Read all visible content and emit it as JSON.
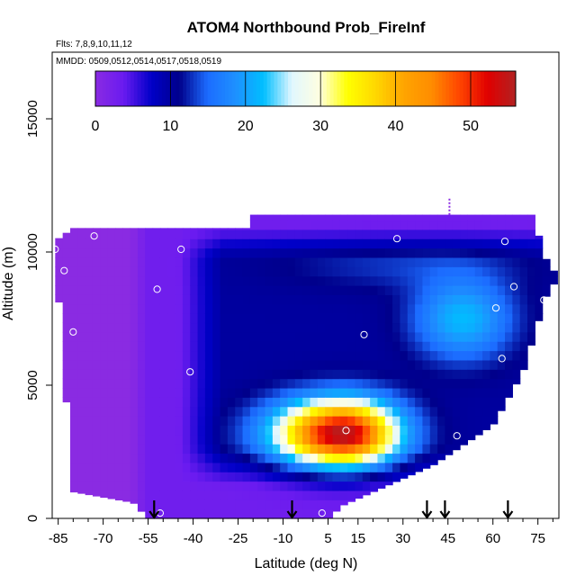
{
  "chart_data": {
    "type": "heatmap",
    "title": "ATOM4 Northbound Prob_FireInf",
    "flights_label": "Flts: 7,8,9,10,11,12",
    "dates_label": "MMDD: 0509,0512,0514,0517,0518,0519",
    "xlabel": "Latitude (deg N)",
    "ylabel": "Altitude (m)",
    "xlim": [
      -87,
      82
    ],
    "ylim": [
      0,
      17500
    ],
    "x_ticks": [
      -85,
      -70,
      -55,
      -40,
      -25,
      -10,
      5,
      15,
      30,
      45,
      60,
      75
    ],
    "x_tick_labels": [
      "-85",
      "-70",
      "-55",
      "-40",
      "-25",
      "-10",
      "5",
      "15",
      "30",
      "45",
      "60",
      "75"
    ],
    "y_ticks": [
      0,
      5000,
      10000,
      15000
    ],
    "y_tick_labels": [
      "0",
      "5000",
      "10000",
      "15000"
    ],
    "colorbar": {
      "min": 0,
      "max": 56,
      "ticks": [
        0,
        10,
        20,
        30,
        40,
        50
      ],
      "tick_labels": [
        "0",
        "10",
        "20",
        "30",
        "40",
        "50"
      ],
      "colors": [
        "#8a2be2",
        "#6a1bf0",
        "#0000c8",
        "#00008b",
        "#1c6cff",
        "#1e90ff",
        "#00bfff",
        "#e0f6ff",
        "#ffffe0",
        "#ffff00",
        "#ffd700",
        "#ffa500",
        "#ff8c00",
        "#ff4500",
        "#e00000",
        "#b22222"
      ]
    },
    "field_hotspots": [
      {
        "name": "background",
        "value": 3
      },
      {
        "name": "upper-blue-band",
        "lat": 30,
        "alt": 9500,
        "value": 10
      },
      {
        "name": "mid-upper-lobe",
        "lat": 50,
        "alt": 7500,
        "value": 20
      },
      {
        "name": "fire-plume",
        "lat": 10,
        "alt": 3200,
        "value": 56
      }
    ],
    "column_tops": [
      {
        "lat": -85,
        "alt": 10500
      },
      {
        "lat": -80,
        "alt": 10900
      },
      {
        "lat": -22,
        "alt": 10900
      },
      {
        "lat": -21,
        "alt": 11400
      },
      {
        "lat": 73,
        "alt": 11400
      },
      {
        "lat": 77,
        "alt": 10000
      },
      {
        "lat": 79,
        "alt": 9300
      }
    ],
    "column_bottoms": [
      {
        "lat": -85,
        "alt": 8500
      },
      {
        "lat": -80,
        "alt": 1000
      },
      {
        "lat": -60,
        "alt": 600
      },
      {
        "lat": -55,
        "alt": 0
      },
      {
        "lat": 5,
        "alt": 0
      },
      {
        "lat": 10,
        "alt": 500
      },
      {
        "lat": 40,
        "alt": 2000
      },
      {
        "lat": 60,
        "alt": 3500
      },
      {
        "lat": 70,
        "alt": 5500
      },
      {
        "lat": 79,
        "alt": 8800
      }
    ],
    "sample_points": [
      {
        "lat": -86,
        "alt": 10100
      },
      {
        "lat": -83,
        "alt": 9300
      },
      {
        "lat": -73,
        "alt": 10600
      },
      {
        "lat": -80,
        "alt": 7000
      },
      {
        "lat": -85,
        "alt": 1300
      },
      {
        "lat": -52,
        "alt": 8600
      },
      {
        "lat": -44,
        "alt": 10100
      },
      {
        "lat": -41,
        "alt": 5500
      },
      {
        "lat": -51,
        "alt": 200
      },
      {
        "lat": 3,
        "alt": 200
      },
      {
        "lat": 17,
        "alt": 6900
      },
      {
        "lat": 11,
        "alt": 3300
      },
      {
        "lat": 28,
        "alt": 10500
      },
      {
        "lat": 48,
        "alt": 3100
      },
      {
        "lat": 61,
        "alt": 7900
      },
      {
        "lat": 63,
        "alt": 6000
      },
      {
        "lat": 67,
        "alt": 8700
      },
      {
        "lat": 60,
        "alt": 3100
      },
      {
        "lat": 64,
        "alt": 10400
      },
      {
        "lat": 76,
        "alt": 10900
      },
      {
        "lat": 77,
        "alt": 8200
      },
      {
        "lat": 81,
        "alt": 9500
      }
    ],
    "flight_markers_lat": [
      -53,
      -7,
      38,
      44,
      65
    ]
  }
}
